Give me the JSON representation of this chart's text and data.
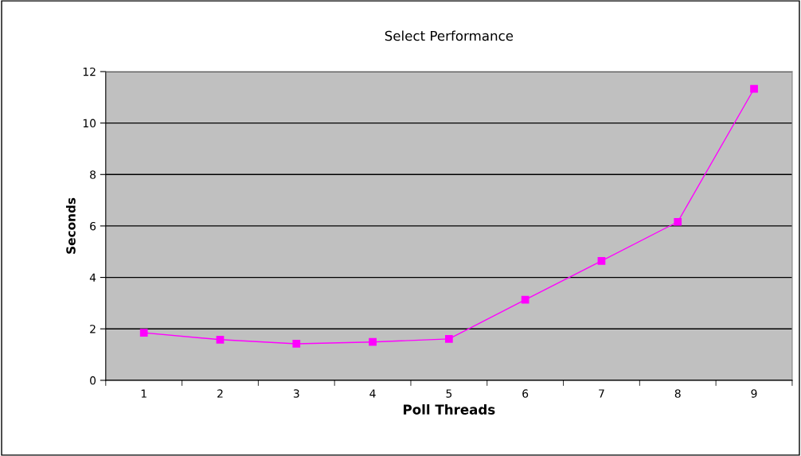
{
  "chart_data": {
    "type": "line",
    "title": "Select Performance",
    "xlabel": "Poll Threads",
    "ylabel": "Seconds",
    "categories": [
      "1",
      "2",
      "3",
      "4",
      "5",
      "6",
      "7",
      "8",
      "9"
    ],
    "series": [
      {
        "color": "#ff00ff",
        "values": [
          1.85,
          1.58,
          1.42,
          1.49,
          1.61,
          3.13,
          4.64,
          6.16,
          11.33
        ]
      }
    ],
    "ylim": [
      0,
      12
    ],
    "yticks": [
      0,
      2,
      4,
      6,
      8,
      10,
      12
    ],
    "grid": "y",
    "marker": "square",
    "line_style": "solid",
    "legend": false
  }
}
